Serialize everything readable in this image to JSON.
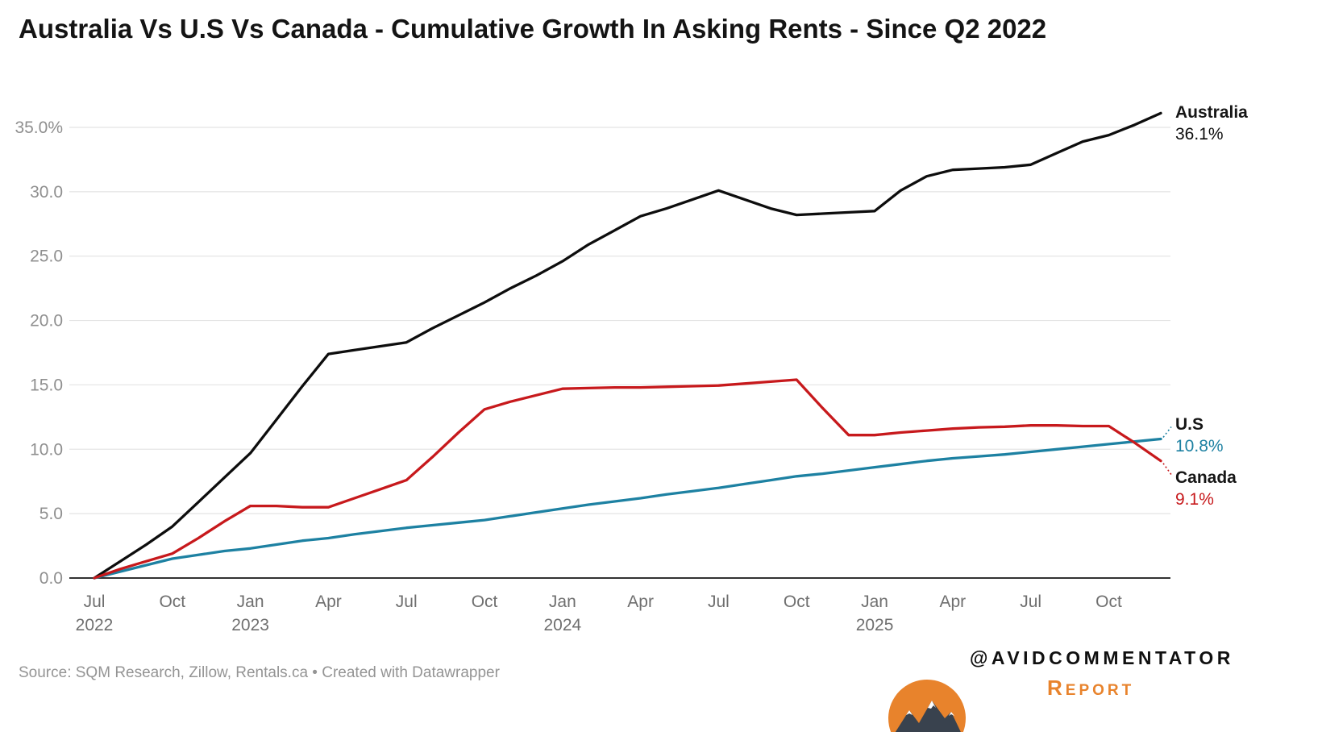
{
  "chart_data": {
    "type": "line",
    "title": "Australia Vs U.S Vs Canada - Cumulative Growth In Asking Rents - Since Q2 2022",
    "x_unit": "month",
    "x_range": [
      "Jul 2022",
      "Dec 2025"
    ],
    "ylim": [
      0,
      35
    ],
    "grid": "horizontal",
    "legend_position": "end-of-line-labels",
    "y_ticks": [
      {
        "v": 0,
        "label": "0.0"
      },
      {
        "v": 5,
        "label": "5.0"
      },
      {
        "v": 10,
        "label": "10.0"
      },
      {
        "v": 15,
        "label": "15.0"
      },
      {
        "v": 20,
        "label": "20.0"
      },
      {
        "v": 25,
        "label": "25.0"
      },
      {
        "v": 30,
        "label": "30.0"
      },
      {
        "v": 35,
        "label": "35.0%"
      }
    ],
    "x_ticks": [
      {
        "i": 0,
        "month": "Jul",
        "year": "2022"
      },
      {
        "i": 3,
        "month": "Oct"
      },
      {
        "i": 6,
        "month": "Jan",
        "year": "2023"
      },
      {
        "i": 9,
        "month": "Apr"
      },
      {
        "i": 12,
        "month": "Jul"
      },
      {
        "i": 15,
        "month": "Oct"
      },
      {
        "i": 18,
        "month": "Jan",
        "year": "2024"
      },
      {
        "i": 21,
        "month": "Apr"
      },
      {
        "i": 24,
        "month": "Jul"
      },
      {
        "i": 27,
        "month": "Oct"
      },
      {
        "i": 30,
        "month": "Jan",
        "year": "2025"
      },
      {
        "i": 33,
        "month": "Apr"
      },
      {
        "i": 36,
        "month": "Jul"
      },
      {
        "i": 39,
        "month": "Oct"
      }
    ],
    "series": [
      {
        "name": "Australia",
        "color": "#0d0d0d",
        "end_label": "36.1%",
        "values": [
          0,
          1.3,
          2.6,
          4,
          5.9,
          7.8,
          9.7,
          12.3,
          14.9,
          17.4,
          17.7,
          18,
          18.3,
          19.4,
          20.4,
          21.4,
          22.5,
          23.5,
          24.6,
          25.9,
          27,
          28.1,
          28.7,
          29.4,
          30.1,
          29.4,
          28.7,
          28.2,
          28.3,
          28.4,
          28.5,
          30.1,
          31.2,
          31.7,
          31.8,
          31.9,
          32.1,
          33,
          33.9,
          34.4,
          35.2,
          36.1
        ]
      },
      {
        "name": "U.S",
        "color": "#1d81a2",
        "end_label": "10.8%",
        "values": [
          0,
          0.5,
          1,
          1.5,
          1.8,
          2.1,
          2.3,
          2.6,
          2.9,
          3.1,
          3.4,
          3.65,
          3.9,
          4.1,
          4.3,
          4.5,
          4.8,
          5.1,
          5.4,
          5.7,
          5.95,
          6.2,
          6.5,
          6.75,
          7,
          7.3,
          7.6,
          7.9,
          8.1,
          8.35,
          8.6,
          8.85,
          9.1,
          9.3,
          9.45,
          9.6,
          9.8,
          10,
          10.2,
          10.4,
          10.6,
          10.8
        ]
      },
      {
        "name": "Canada",
        "color": "#c7191c",
        "end_label": "9.1%",
        "values": [
          0,
          0.7,
          1.3,
          1.9,
          3.1,
          4.4,
          5.6,
          5.6,
          5.5,
          5.5,
          6.2,
          6.9,
          7.6,
          9.4,
          11.3,
          13.1,
          13.7,
          14.2,
          14.7,
          14.75,
          14.8,
          14.8,
          14.85,
          14.9,
          14.95,
          15.1,
          15.25,
          15.4,
          13.2,
          11.1,
          11.1,
          11.3,
          11.45,
          11.6,
          11.7,
          11.75,
          11.85,
          11.85,
          11.8,
          11.8,
          10.5,
          9.1
        ]
      }
    ]
  },
  "footer": {
    "source_note": "Source: SQM Research, Zillow, Rentals.ca • Created with Datawrapper"
  },
  "branding": {
    "handle": "@AVIDCOMMENTATOR",
    "subtitle_initial": "R",
    "subtitle_rest": "eport",
    "accent_color": "#e8832c"
  }
}
